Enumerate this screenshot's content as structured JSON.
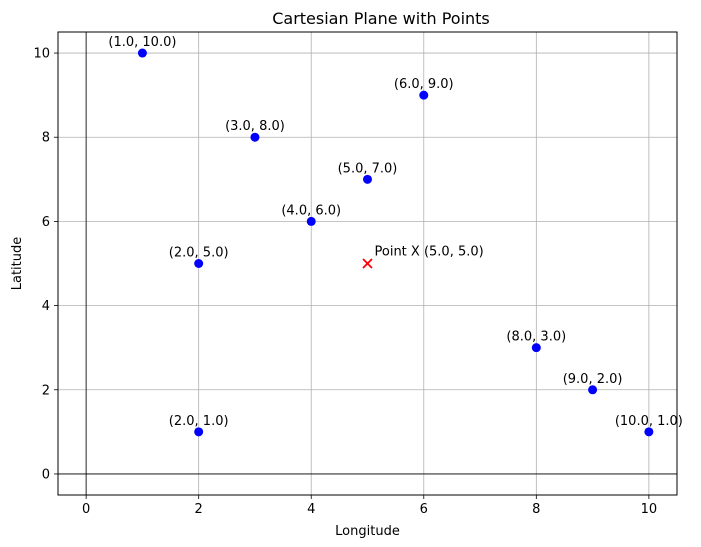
{
  "chart_data": {
    "type": "scatter",
    "title": "Cartesian Plane with Points",
    "xlabel": "Longitude",
    "ylabel": "Latitude",
    "xlim": [
      -0.5,
      10.5
    ],
    "ylim": [
      -0.5,
      10.5
    ],
    "x_ticks": [
      0,
      2,
      4,
      6,
      8,
      10
    ],
    "y_ticks": [
      0,
      2,
      4,
      6,
      8,
      10
    ],
    "grid": true,
    "reference_lines": {
      "x": 0,
      "y": 0
    },
    "series": [
      {
        "marker": "circle",
        "color": "#0000ff",
        "points": [
          {
            "x": 1,
            "y": 10,
            "label": "(1.0, 10.0)"
          },
          {
            "x": 6,
            "y": 9,
            "label": "(6.0, 9.0)"
          },
          {
            "x": 3,
            "y": 8,
            "label": "(3.0, 8.0)"
          },
          {
            "x": 5,
            "y": 7,
            "label": "(5.0, 7.0)"
          },
          {
            "x": 4,
            "y": 6,
            "label": "(4.0, 6.0)"
          },
          {
            "x": 2,
            "y": 5,
            "label": "(2.0, 5.0)"
          },
          {
            "x": 8,
            "y": 3,
            "label": "(8.0, 3.0)"
          },
          {
            "x": 9,
            "y": 2,
            "label": "(9.0, 2.0)"
          },
          {
            "x": 2,
            "y": 1,
            "label": "(2.0, 1.0)"
          },
          {
            "x": 10,
            "y": 1,
            "label": "(10.0, 1.0)"
          }
        ]
      },
      {
        "marker": "x",
        "color": "#ff0000",
        "points": [
          {
            "x": 5,
            "y": 5,
            "label": "Point X (5.0, 5.0)"
          }
        ]
      }
    ]
  }
}
